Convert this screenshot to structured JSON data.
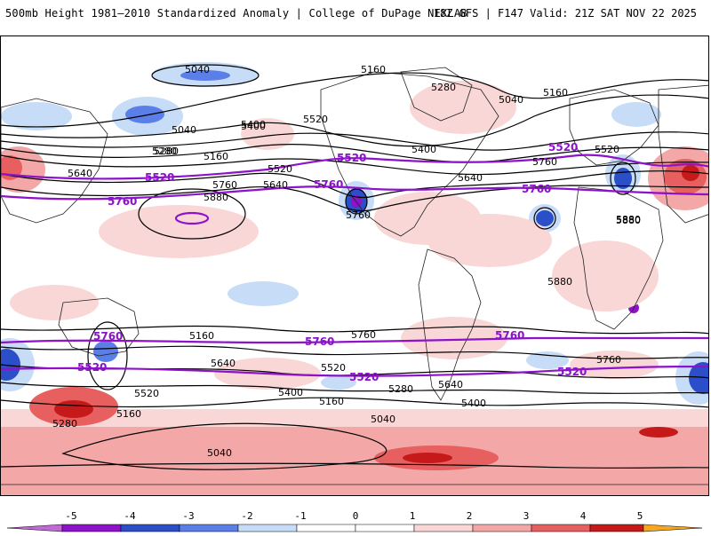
{
  "header": {
    "title_left": "500mb Height 1981–2010 Standardized Anomaly | College of DuPage NEXLAB",
    "title_right": "18Z GFS | F147 Valid: 21Z SAT NOV 22 2025"
  },
  "colors": {
    "neg5": "#c06ad8",
    "neg4": "#8e12c9",
    "neg3": "#2a4fc9",
    "neg2": "#5b7fe8",
    "neg1": "#c7dcf6",
    "zero": "#ffffff",
    "pos1": "#f9d7d7",
    "pos2": "#f3a7a7",
    "pos3": "#e75f5f",
    "pos4": "#c61a1a",
    "pos5": "#f5a623",
    "contour": "#000000",
    "purple_contour": "#8e12c9"
  },
  "colorbar": {
    "ticks": [
      "-5",
      "-4",
      "-3",
      "-2",
      "-1",
      "0",
      "1",
      "2",
      "3",
      "4",
      "5"
    ]
  },
  "map": {
    "contour_labels": [
      "5040",
      "5160",
      "5280",
      "5400",
      "5520",
      "5640",
      "5760",
      "5880",
      "5040",
      "5160",
      "5280",
      "5400",
      "5520",
      "5640",
      "5760",
      "5880",
      "5760",
      "5640",
      "5520",
      "5400",
      "5280",
      "5160",
      "5040",
      "5160",
      "5400",
      "5280",
      "5520",
      "5640",
      "5760",
      "5160",
      "5040",
      "5400",
      "5520",
      "5280",
      "5160",
      "5040",
      "5880",
      "5880",
      "5760",
      "5640"
    ],
    "purple_labels": [
      "5520",
      "5760",
      "5520",
      "5760",
      "5520",
      "5760",
      "5760",
      "5520",
      "5760",
      "5520",
      "5520",
      "5760"
    ]
  }
}
